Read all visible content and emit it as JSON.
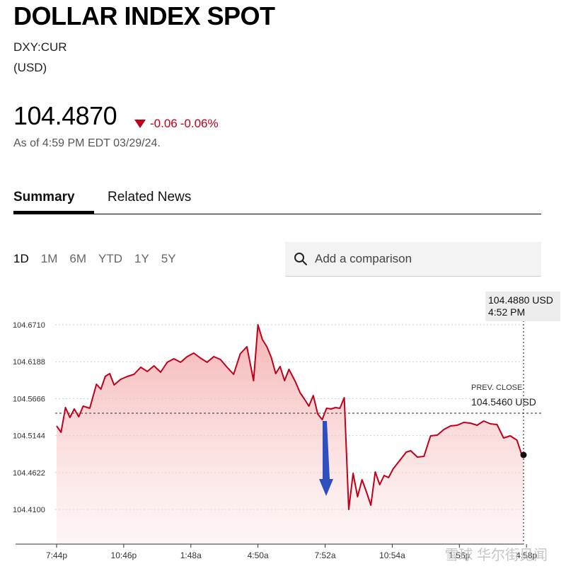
{
  "header": {
    "title": "DOLLAR INDEX SPOT",
    "ticker": "DXY:CUR",
    "currency": "(USD)",
    "price": "104.4870",
    "change": "-0.06",
    "change_pct": "-0.06%",
    "as_of": "As of 4:59 PM EDT 03/29/24."
  },
  "tabs": [
    {
      "label": "Summary",
      "active": true
    },
    {
      "label": "Related News",
      "active": false
    }
  ],
  "ranges": [
    "1D",
    "1M",
    "6M",
    "YTD",
    "1Y",
    "5Y"
  ],
  "active_range": "1D",
  "comparison": {
    "placeholder": "Add a comparison"
  },
  "tooltip": {
    "value": "104.4880 USD",
    "time": "4:52 PM"
  },
  "prev_close": {
    "label": "PREV. CLOSE",
    "value": "104.5460 USD"
  },
  "watermark": "雪球 华尔街见闻",
  "colors": {
    "line": "#c0001a",
    "fill": "#f8c9c9",
    "down": "#c0001a",
    "arrow": "#2f4fbf"
  },
  "icons": [
    "search-icon",
    "down-triangle-icon",
    "arrow-down-icon"
  ],
  "chart_data": {
    "type": "area",
    "ylim": [
      104.41,
      104.671
    ],
    "y_ticks": [
      "104.6710",
      "104.6188",
      "104.5666",
      "104.5144",
      "104.4622",
      "104.4100"
    ],
    "x_ticks": [
      "7:44p",
      "10:46p",
      "1:48a",
      "4:50a",
      "7:52a",
      "10:54a",
      "1:56p",
      "4:58p"
    ],
    "x_tick_hours": [
      0,
      3.033,
      6.067,
      9.1,
      12.133,
      15.167,
      18.2,
      21.233
    ],
    "prev_close": 104.546,
    "series": [
      {
        "x": [
          0,
          0.2,
          0.4,
          0.6,
          0.8,
          1.0,
          1.2,
          1.5,
          1.8,
          2.0,
          2.2,
          2.4,
          2.6,
          2.9,
          3.2,
          3.5,
          3.8,
          4.1,
          4.4,
          4.7,
          5.0,
          5.3,
          5.6,
          5.9,
          6.2,
          6.5,
          6.8,
          7.1,
          7.4,
          7.7,
          8.0,
          8.3,
          8.6,
          8.9,
          9.1,
          9.3,
          9.5,
          9.7,
          9.9,
          10.1,
          10.3,
          10.5,
          10.8,
          11.0,
          11.2,
          11.4,
          11.6,
          11.8,
          12.0,
          12.2,
          12.4,
          12.6,
          12.8,
          13.0,
          13.2,
          13.4,
          13.6,
          13.8,
          14.0,
          14.2,
          14.4,
          14.6,
          14.8,
          15.0,
          15.2,
          15.5,
          15.8,
          16.0,
          16.3,
          16.6,
          16.9,
          17.2,
          17.5,
          17.8,
          18.1,
          18.4,
          18.7,
          19.0,
          19.3,
          19.6,
          19.9,
          20.2,
          20.5,
          20.8,
          21.0,
          21.1
        ],
        "y": [
          104.528,
          104.519,
          104.554,
          104.54,
          104.552,
          104.541,
          104.556,
          104.553,
          104.587,
          104.58,
          104.598,
          104.602,
          104.586,
          104.594,
          104.598,
          104.601,
          104.611,
          104.605,
          104.613,
          104.604,
          104.618,
          104.623,
          104.618,
          104.626,
          104.631,
          104.624,
          104.618,
          104.626,
          104.622,
          104.611,
          104.601,
          104.63,
          104.64,
          104.592,
          104.671,
          104.65,
          104.64,
          104.625,
          104.602,
          104.612,
          104.592,
          104.608,
          104.59,
          104.575,
          104.566,
          104.556,
          104.571,
          104.545,
          104.537,
          104.553,
          104.552,
          104.554,
          104.553,
          104.568,
          104.41,
          104.461,
          104.428,
          104.452,
          104.435,
          104.416,
          104.463,
          104.445,
          104.458,
          104.455,
          104.467,
          104.479,
          104.491,
          104.493,
          104.484,
          104.485,
          104.514,
          104.515,
          104.523,
          104.528,
          104.529,
          104.533,
          104.532,
          104.529,
          104.535,
          104.531,
          104.53,
          104.511,
          104.514,
          104.508,
          104.489,
          104.487
        ]
      }
    ]
  }
}
